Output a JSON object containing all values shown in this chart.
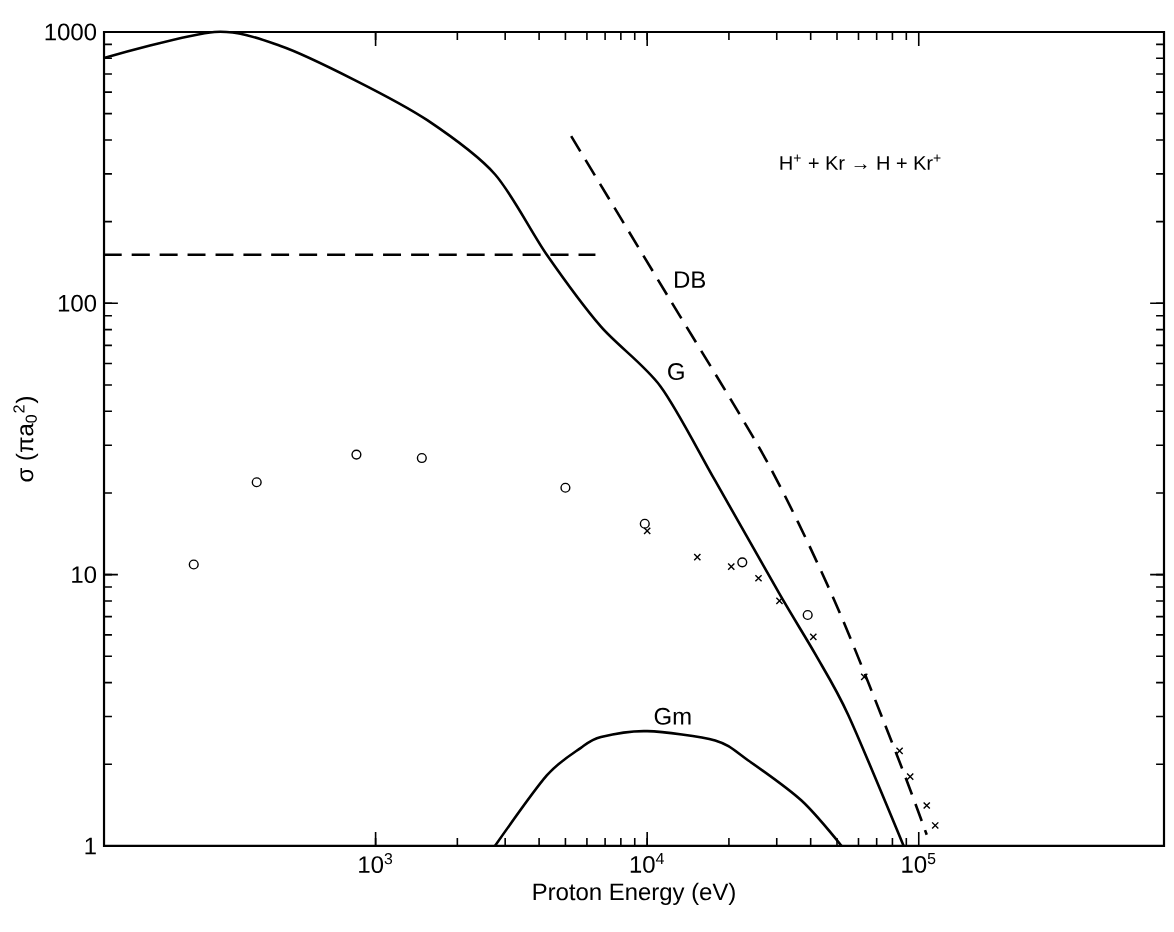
{
  "chart_data": {
    "type": "line",
    "xlabel": "Proton Energy (eV)",
    "ylabel": "σ (πa$_{0}$$^{2}$)",
    "log": "xy",
    "xlim": [
      100,
      800000
    ],
    "ylim": [
      1,
      1000
    ],
    "xticks": [
      {
        "value": 1000,
        "label": "10$^{3}$"
      },
      {
        "value": 10000,
        "label": "10$^{4}$"
      },
      {
        "value": 100000,
        "label": "10$^{5}$"
      }
    ],
    "yticks": [
      1,
      10,
      100,
      1000
    ],
    "grid": false,
    "series": [
      {
        "color": "#000000",
        "line_style": "solid",
        "x": [
          100,
          255,
          447,
          838,
          1550,
          2750,
          4270,
          6760,
          11200,
          17800,
          30900,
          41700,
          55000,
          88000
        ],
        "values": [
          802,
          1000,
          888,
          665,
          473,
          299,
          151,
          82,
          49.4,
          22.2,
          8.4,
          5.07,
          3.04,
          1
        ]
      },
      {
        "color": "#000000",
        "line_style": "dashed",
        "x": [
          5250,
          11800,
          27500,
          49000,
          83000,
          107000
        ],
        "values": [
          413,
          108,
          26.3,
          8.0,
          2.17,
          1.1
        ]
      },
      {
        "color": "#000000",
        "line_style": "dashed",
        "x": [
          100,
          6450
        ],
        "values": [
          151,
          151
        ]
      },
      {
        "color": "#000000",
        "line_style": "solid",
        "x": [
          2750,
          4270,
          5700,
          6760,
          10000,
          17800,
          23500,
          37000,
          52000
        ],
        "values": [
          1,
          1.82,
          2.3,
          2.52,
          2.65,
          2.45,
          2.07,
          1.47,
          1
        ]
      },
      {
        "type": "scatter",
        "color": "#000000",
        "marker": "circle",
        "x": [
          214,
          365,
          850,
          1480,
          5000,
          9800,
          22400,
          39000
        ],
        "values": [
          10.9,
          21.9,
          27.7,
          26.9,
          20.9,
          15.4,
          11.1,
          7.1
        ]
      },
      {
        "type": "scatter",
        "color": "#000000",
        "marker": "cross",
        "x": [
          10000,
          15300,
          20400,
          25700,
          30700,
          40900,
          63000,
          85000,
          93000,
          107000,
          115000
        ],
        "values": [
          14.5,
          11.6,
          10.7,
          9.7,
          8.0,
          5.9,
          4.2,
          2.24,
          1.8,
          1.41,
          1.19
        ]
      }
    ],
    "annotations": [
      {
        "text": "DB",
        "x": 11800,
        "y": 108
      },
      {
        "text": "G",
        "x": 11200,
        "y": 49.4
      },
      {
        "text": "Gm",
        "x": 10000,
        "y": 2.65
      },
      "H$^{+}$ + Kr → H + Kr$^{+}$"
    ]
  }
}
